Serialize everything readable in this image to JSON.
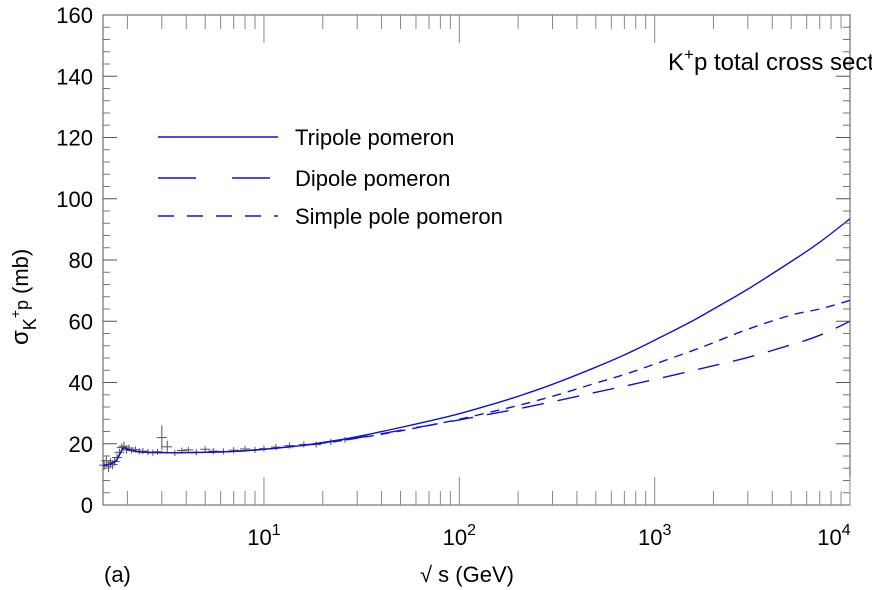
{
  "chart_data": {
    "type": "line",
    "title_main": "K",
    "title_sup": "+",
    "title_rest": "p total cross section",
    "xlabel": "√ s (GeV)",
    "ylabel_main": "σ",
    "ylabel_sub": "K",
    "ylabel_sup": "+",
    "ylabel_sub2": "p",
    "ylabel_unit": "(mb)",
    "panel_label": "(a)",
    "x_scale": "log",
    "xlim": [
      1.5,
      10000
    ],
    "ylim": [
      0,
      160
    ],
    "y_ticks": [
      "0",
      "20",
      "40",
      "60",
      "80",
      "100",
      "120",
      "140",
      "160"
    ],
    "x_ticks": [
      {
        "base": "10",
        "exp": "1",
        "value": 10
      },
      {
        "base": "10",
        "exp": "2",
        "value": 100
      },
      {
        "base": "10",
        "exp": "3",
        "value": 1000
      },
      {
        "base": "10",
        "exp": "4",
        "value": 10000
      }
    ],
    "legend_position": "upper-left",
    "series": [
      {
        "name": "Tripole pomeron",
        "style": "solid",
        "color": "#1010d8",
        "x": [
          1.5,
          1.6,
          1.75,
          1.9,
          2.0,
          2.2,
          2.5,
          3,
          4,
          5,
          7,
          10,
          15,
          20,
          30,
          50,
          70,
          100,
          150,
          200,
          300,
          500,
          700,
          1000,
          1500,
          2000,
          3000,
          5000,
          7000,
          10000
        ],
        "y": [
          13.0,
          13.2,
          14.5,
          18.5,
          18.2,
          17.5,
          17.2,
          17.1,
          17.1,
          17.2,
          17.5,
          18.2,
          19.3,
          20.4,
          22.3,
          25.3,
          27.4,
          29.8,
          33.0,
          35.5,
          39.4,
          45.0,
          49.0,
          53.8,
          59.5,
          64.0,
          70.5,
          79.5,
          85.8,
          93.5
        ]
      },
      {
        "name": "Dipole pomeron",
        "style": "long-dash",
        "color": "#1010d8",
        "x": [
          1.5,
          1.6,
          1.75,
          1.9,
          2.0,
          2.2,
          2.5,
          3,
          4,
          5,
          7,
          10,
          15,
          20,
          30,
          50,
          70,
          100,
          150,
          200,
          300,
          500,
          700,
          1000,
          1500,
          2000,
          3000,
          5000,
          7000,
          10000
        ],
        "y": [
          13.0,
          13.2,
          14.5,
          18.5,
          18.2,
          17.5,
          17.2,
          17.1,
          17.1,
          17.2,
          17.5,
          18.2,
          19.3,
          20.3,
          21.9,
          24.4,
          26.0,
          27.8,
          29.9,
          31.4,
          33.7,
          36.8,
          38.8,
          41.0,
          43.6,
          45.5,
          48.2,
          52.3,
          55.4,
          60.0
        ]
      },
      {
        "name": "Simple pole pomeron",
        "style": "short-dash",
        "color": "#1010d8",
        "x": [
          1.5,
          1.6,
          1.75,
          1.9,
          2.0,
          2.2,
          2.5,
          3,
          4,
          5,
          7,
          10,
          15,
          20,
          30,
          50,
          70,
          100,
          150,
          200,
          300,
          500,
          700,
          1000,
          1500,
          2000,
          3000,
          5000,
          7000,
          10000
        ],
        "y": [
          13.0,
          13.2,
          14.5,
          18.5,
          18.2,
          17.5,
          17.2,
          17.1,
          17.1,
          17.2,
          17.5,
          18.2,
          19.3,
          20.2,
          21.8,
          24.2,
          26.0,
          28.0,
          30.6,
          32.5,
          35.5,
          39.8,
          42.6,
          46.0,
          50.0,
          53.0,
          57.4,
          62.0,
          64.0,
          66.8
        ]
      }
    ],
    "data_points": {
      "color": "#555555",
      "x": [
        1.52,
        1.56,
        1.6,
        1.64,
        1.68,
        1.72,
        1.77,
        1.82,
        1.87,
        1.92,
        1.98,
        2.04,
        2.1,
        2.2,
        2.3,
        2.4,
        2.55,
        2.7,
        2.85,
        3.0,
        3.2,
        3.5,
        3.8,
        4.1,
        4.5,
        5.0,
        5.5,
        6.2,
        7.0,
        8.0,
        9.0,
        10.0,
        11.5,
        13.5,
        16.0,
        18.5,
        22.0,
        26.0
      ],
      "y": [
        13.0,
        14.5,
        12.5,
        13.8,
        13.2,
        14.2,
        15.5,
        17.2,
        18.8,
        19.2,
        18.0,
        18.6,
        17.8,
        18.1,
        17.5,
        17.6,
        17.3,
        17.1,
        17.4,
        22.0,
        19.0,
        17.0,
        17.8,
        18.0,
        17.2,
        18.2,
        17.6,
        17.5,
        17.9,
        18.3,
        18.0,
        18.4,
        18.9,
        19.4,
        19.8,
        19.7,
        20.6,
        21.3
      ],
      "err": [
        1.6,
        1.8,
        1.8,
        1.6,
        1.5,
        1.4,
        1.3,
        1.2,
        1.3,
        1.5,
        1.3,
        1.1,
        1.0,
        1.0,
        1.0,
        1.0,
        1.0,
        1.0,
        1.0,
        4.0,
        2.0,
        1.0,
        1.0,
        1.0,
        1.0,
        1.0,
        1.0,
        1.0,
        1.0,
        1.0,
        1.0,
        1.0,
        1.0,
        1.0,
        1.0,
        1.0,
        1.0,
        1.0
      ]
    }
  }
}
